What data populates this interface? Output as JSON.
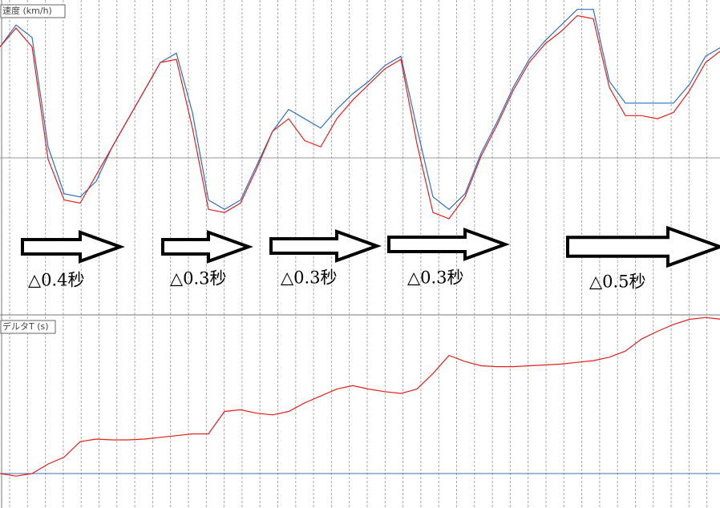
{
  "chart_data": [
    {
      "type": "line",
      "title": "速度 (km/h)",
      "x": [
        0,
        1,
        2,
        3,
        4,
        5,
        6,
        7,
        8,
        9,
        10,
        11,
        12,
        13,
        14,
        15,
        16,
        17,
        18,
        19,
        20,
        21,
        22,
        23,
        24,
        25,
        26,
        27,
        28,
        29,
        30,
        31,
        32,
        33,
        34,
        35,
        36,
        37,
        38,
        39,
        40,
        41,
        42,
        43,
        44,
        45
      ],
      "xlim": [
        0,
        45
      ],
      "ylim": [
        0,
        100
      ],
      "grid": true,
      "series": [
        {
          "color": "#2f6fc0",
          "values": [
            85,
            92,
            88,
            53,
            38,
            37,
            42,
            53,
            62,
            71,
            80,
            83,
            64,
            36,
            33,
            36,
            47,
            58,
            65,
            62,
            59,
            65,
            70,
            74,
            79,
            82,
            59,
            37,
            33,
            38,
            51,
            61,
            72,
            81,
            87,
            92,
            97,
            97,
            74,
            67,
            67,
            67,
            67,
            73,
            82,
            85
          ]
        },
        {
          "color": "#e02020",
          "values": [
            85,
            91,
            85,
            49,
            36,
            35,
            44,
            53,
            62,
            71,
            80,
            81,
            59,
            33,
            32,
            35,
            46,
            58,
            62,
            55,
            53,
            62,
            68,
            73,
            78,
            81,
            54,
            32,
            30,
            37,
            50,
            60,
            71,
            80,
            86,
            90,
            95,
            94,
            72,
            63,
            63,
            62,
            64,
            71,
            80,
            84
          ]
        }
      ],
      "annotations": [
        "△0.4秒",
        "△0.3秒",
        "△0.3秒",
        "△0.3秒",
        "△0.5秒"
      ]
    },
    {
      "type": "line",
      "title": "デルタT (s)",
      "x": [
        0,
        1,
        2,
        3,
        4,
        5,
        6,
        7,
        8,
        9,
        10,
        11,
        12,
        13,
        14,
        15,
        16,
        17,
        18,
        19,
        20,
        21,
        22,
        23,
        24,
        25,
        26,
        27,
        28,
        29,
        30,
        31,
        32,
        33,
        34,
        35,
        36,
        37,
        38,
        39,
        40,
        41,
        42,
        43,
        44,
        45
      ],
      "xlim": [
        0,
        45
      ],
      "ylim": [
        -0.4,
        1.85
      ],
      "grid": true,
      "series": [
        {
          "color": "#e02020",
          "values": [
            0,
            -0.03,
            0,
            0.11,
            0.19,
            0.37,
            0.4,
            0.39,
            0.39,
            0.4,
            0.42,
            0.44,
            0.46,
            0.46,
            0.72,
            0.74,
            0.7,
            0.68,
            0.72,
            0.82,
            0.9,
            0.98,
            1.02,
            0.98,
            0.95,
            0.93,
            0.98,
            1.16,
            1.37,
            1.3,
            1.25,
            1.24,
            1.24,
            1.25,
            1.26,
            1.27,
            1.29,
            1.31,
            1.35,
            1.42,
            1.56,
            1.65,
            1.73,
            1.79,
            1.81,
            1.79
          ]
        }
      ]
    }
  ]
}
